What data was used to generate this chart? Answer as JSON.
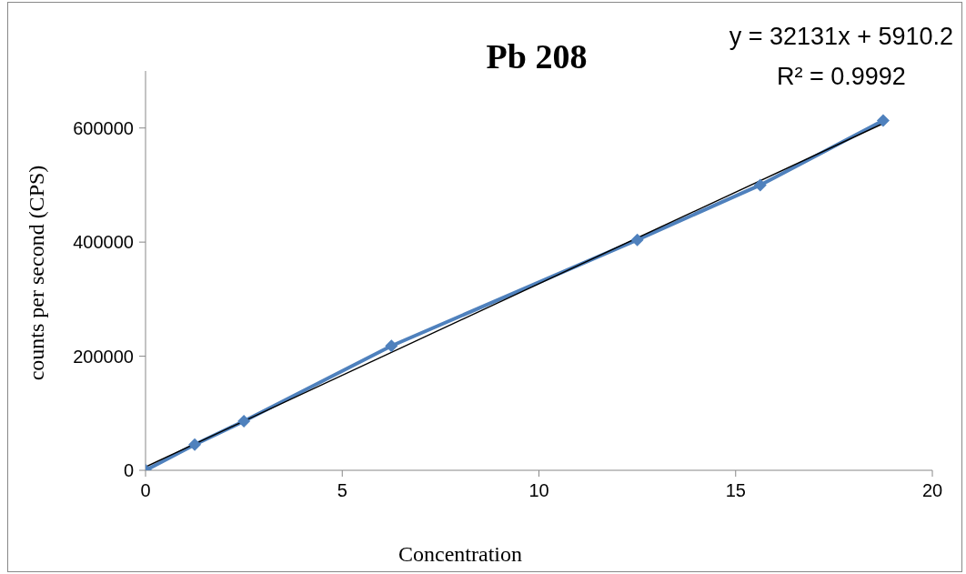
{
  "chart_data": {
    "type": "line",
    "title": "Pb 208",
    "xlabel": "Concentration",
    "ylabel": "counts per second (CPS)",
    "annotations": [
      "y = 32131x + 5910.2",
      "R² = 0.9992"
    ],
    "xlim": [
      0,
      20
    ],
    "xticks": [
      0,
      5,
      10,
      15,
      20
    ],
    "ylim": [
      0,
      700000
    ],
    "yticks": [
      0,
      200000,
      400000,
      600000
    ],
    "grid": false,
    "series": [
      {
        "color": "#4f81bd",
        "marker": "diamond",
        "x": [
          0,
          1.25,
          2.5,
          6.25,
          12.5,
          15.625,
          18.75
        ],
        "values": [
          0,
          45000,
          86000,
          218000,
          404000,
          500000,
          613000
        ]
      },
      {
        "color": "#000000",
        "marker": "none",
        "line_style": "solid",
        "x": [
          0,
          18.75
        ],
        "values": [
          6000,
          608000
        ]
      }
    ]
  }
}
